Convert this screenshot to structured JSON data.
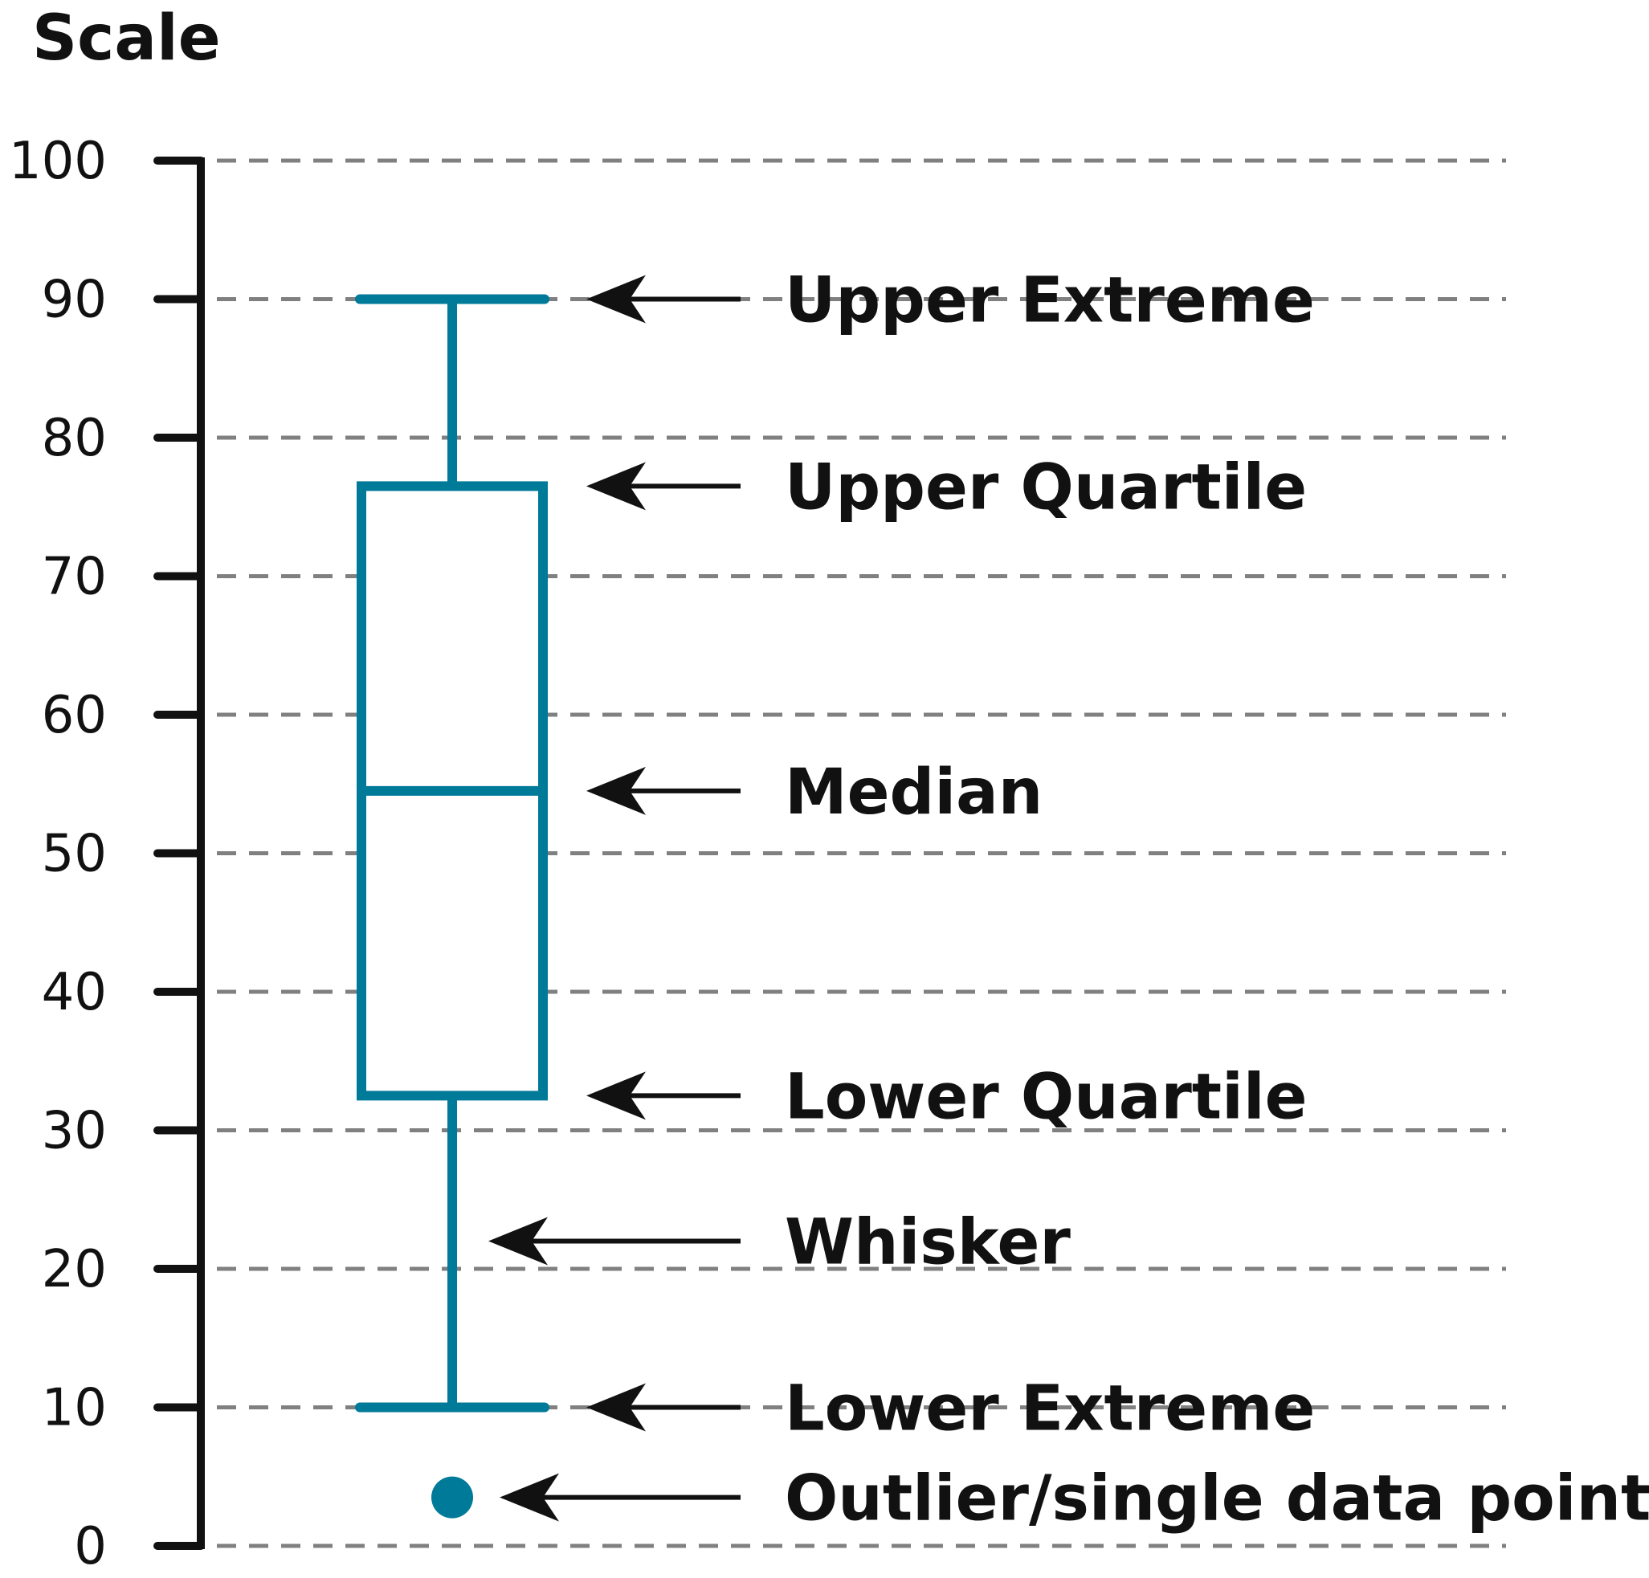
{
  "chart_data": {
    "type": "box",
    "title": "",
    "ylabel": "Scale",
    "ylim": [
      0,
      100
    ],
    "yticks": [
      0,
      10,
      20,
      30,
      40,
      50,
      60,
      70,
      80,
      90,
      100
    ],
    "grid": true,
    "box": {
      "lower_extreme": 10,
      "lower_quartile": 32.5,
      "median": 54.5,
      "upper_quartile": 76.5,
      "upper_extreme": 90
    },
    "outliers": [
      3.5
    ],
    "annotations": [
      {
        "label": "Upper Extreme",
        "value": 90
      },
      {
        "label": "Upper Quartile",
        "value": 76.5
      },
      {
        "label": "Median",
        "value": 54.5
      },
      {
        "label": "Lower Quartile",
        "value": 32.5
      },
      {
        "label": "Whisker",
        "value": 22
      },
      {
        "label": "Lower Extreme",
        "value": 10
      },
      {
        "label": "Outlier/single data point",
        "value": 3.5
      }
    ],
    "colors": {
      "box": "#007a99",
      "axis": "#111111",
      "grid": "#808080",
      "arrow": "#111111"
    }
  }
}
